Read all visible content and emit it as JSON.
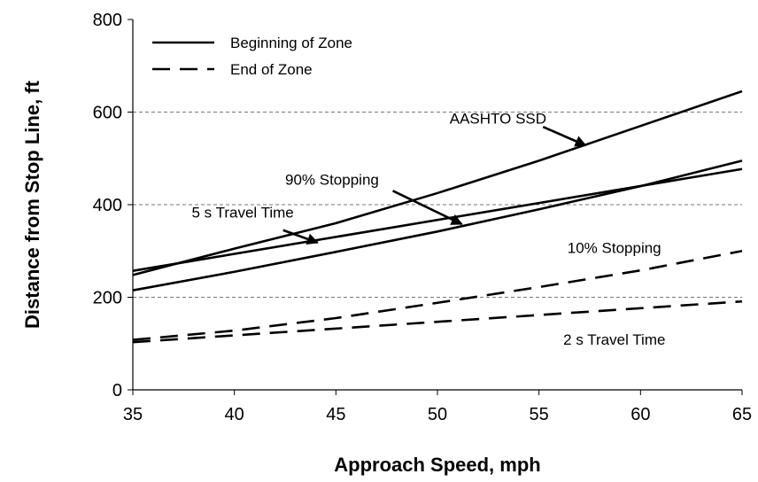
{
  "chart_data": {
    "type": "line",
    "xlabel": "Approach Speed, mph",
    "ylabel": "Distance from Stop Line, ft",
    "xlim": [
      35,
      65
    ],
    "ylim": [
      0,
      800
    ],
    "x_ticks": [
      35,
      40,
      45,
      50,
      55,
      60,
      65
    ],
    "y_ticks": [
      0,
      200,
      400,
      600,
      800
    ],
    "grid": "dashed horizontal at y = 200, 400, 600",
    "legend": {
      "placement": "top-left",
      "entries": [
        {
          "label": "Beginning of Zone",
          "style": "solid"
        },
        {
          "label": "End of Zone",
          "style": "dashed"
        }
      ]
    },
    "series": [
      {
        "name": "AASHTO SSD",
        "style": "solid",
        "x": [
          35,
          40,
          45,
          50,
          55,
          60,
          65
        ],
        "y": [
          248,
          305,
          360,
          425,
          495,
          570,
          645
        ]
      },
      {
        "name": "90% Stopping",
        "style": "solid",
        "x": [
          35,
          40,
          45,
          50,
          55,
          60,
          65
        ],
        "y": [
          215,
          255,
          298,
          342,
          390,
          440,
          495
        ]
      },
      {
        "name": "5 s Travel Time",
        "style": "solid",
        "x": [
          35,
          65
        ],
        "y": [
          257,
          477
        ]
      },
      {
        "name": "10% Stopping",
        "style": "dashed",
        "x": [
          35,
          40,
          45,
          50,
          55,
          60,
          65
        ],
        "y": [
          108,
          128,
          155,
          188,
          222,
          258,
          300
        ]
      },
      {
        "name": "2 s Travel Time",
        "style": "dashed",
        "x": [
          35,
          65
        ],
        "y": [
          103,
          191
        ]
      }
    ],
    "annotations": [
      {
        "text": "AASHTO SSD",
        "label_at": [
          50.6,
          575
        ],
        "arrow_from": [
          55.2,
          568
        ],
        "arrow_to": [
          57.3,
          528
        ]
      },
      {
        "text": "90% Stopping",
        "label_at": [
          42.5,
          443
        ],
        "arrow_from": [
          47.8,
          430
        ],
        "arrow_to": [
          51.2,
          358
        ]
      },
      {
        "text": "5 s Travel Time",
        "label_at": [
          37.9,
          372
        ],
        "arrow_from": [
          42.4,
          345
        ],
        "arrow_to": [
          44.1,
          318
        ]
      },
      {
        "text": "10% Stopping",
        "label_at": [
          56.4,
          296
        ]
      },
      {
        "text": "2 s Travel Time",
        "label_at": [
          56.2,
          98
        ]
      }
    ],
    "colors": {
      "line": "#000000",
      "grid": "#777777",
      "background": "#ffffff"
    }
  }
}
